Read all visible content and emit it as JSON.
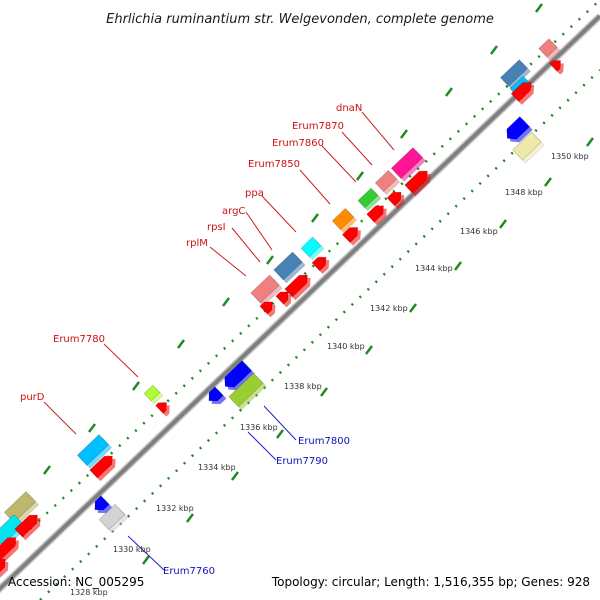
{
  "title": "Ehrlichia ruminantium str. Welgevonden, complete genome",
  "accession": "Accession: NC_005295",
  "summary": "Topology: circular; Length: 1,516,355 bp; Genes: 928",
  "colors": {
    "backbone": "#8a8a8a",
    "tick": "#1f8a1f",
    "forward_label": "#cc1111",
    "reverse_label": "#1111bb",
    "leader": "#cc2222",
    "leader_reverse": "#2222cc"
  },
  "scale_labels": [
    {
      "text": "1328 kbp",
      "kbp": 1328
    },
    {
      "text": "1330 kbp",
      "kbp": 1330
    },
    {
      "text": "1332 kbp",
      "kbp": 1332
    },
    {
      "text": "1334 kbp",
      "kbp": 1334
    },
    {
      "text": "1336 kbp",
      "kbp": 1336
    },
    {
      "text": "1338 kbp",
      "kbp": 1338
    },
    {
      "text": "1340 kbp",
      "kbp": 1340
    },
    {
      "text": "1342 kbp",
      "kbp": 1342
    },
    {
      "text": "1344 kbp",
      "kbp": 1344
    },
    {
      "text": "1346 kbp",
      "kbp": 1346
    },
    {
      "text": "1348 kbp",
      "kbp": 1348
    },
    {
      "text": "1350 kbp",
      "kbp": 1350
    }
  ],
  "gene_labels": [
    {
      "name": "purD",
      "strand": "forward"
    },
    {
      "name": "Erum7780",
      "strand": "forward"
    },
    {
      "name": "rplM",
      "strand": "forward"
    },
    {
      "name": "rpsI",
      "strand": "forward"
    },
    {
      "name": "argC",
      "strand": "forward"
    },
    {
      "name": "ppa",
      "strand": "forward"
    },
    {
      "name": "Erum7850",
      "strand": "forward"
    },
    {
      "name": "Erum7860",
      "strand": "forward"
    },
    {
      "name": "Erum7870",
      "strand": "forward"
    },
    {
      "name": "dnaN",
      "strand": "forward"
    },
    {
      "name": "Erum7760",
      "strand": "reverse"
    },
    {
      "name": "Erum7790",
      "strand": "reverse"
    },
    {
      "name": "Erum7800",
      "strand": "reverse"
    }
  ],
  "features": [
    {
      "color": "#bdb76b",
      "track": "fwd_cds"
    },
    {
      "color": "#00e5ee",
      "track": "fwd_cds"
    },
    {
      "color": "#00bfff",
      "track": "fwd_cds"
    },
    {
      "color": "#adff2f",
      "track": "fwd_cds"
    },
    {
      "color": "#f08080",
      "track": "fwd_cds"
    },
    {
      "color": "#4682b4",
      "track": "fwd_cds"
    },
    {
      "color": "#00ffff",
      "track": "fwd_cds"
    },
    {
      "color": "#ff8c00",
      "track": "fwd_cds"
    },
    {
      "color": "#32cd32",
      "track": "fwd_cds"
    },
    {
      "color": "#f08080",
      "track": "fwd_cds"
    },
    {
      "color": "#ff1493",
      "track": "fwd_cds"
    },
    {
      "color": "#4682b4",
      "track": "fwd_cds"
    },
    {
      "color": "#00bfff",
      "track": "fwd_cds"
    },
    {
      "color": "#f08080",
      "track": "fwd_cds"
    },
    {
      "color": "#ff0000",
      "track": "fwd_orf"
    },
    {
      "color": "#0000ff",
      "track": "rev_cds"
    },
    {
      "color": "#9acd32",
      "track": "rev_cds"
    },
    {
      "color": "#d3d3d3",
      "track": "rev_cds"
    },
    {
      "color": "#eee8aa",
      "track": "rev_cds"
    }
  ]
}
